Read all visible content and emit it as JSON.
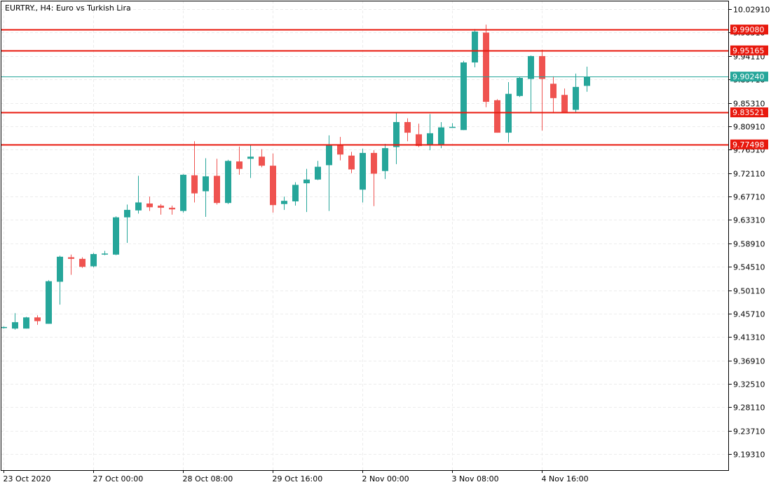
{
  "window": {
    "symbol": "EURTRY.",
    "timeframe": "H4",
    "description": "Euro vs Turkish Lira",
    "title_text": "EURTRY., H4:  Euro vs Turkish Lira"
  },
  "colors": {
    "bull": "#26a69a",
    "bear": "#ef5350",
    "level_line": "#e8190e",
    "bid_line": "#26a69a",
    "grid": "#ececec",
    "axis": "#000000"
  },
  "chart_data": {
    "type": "candlestick",
    "symbol": "EURTRY.",
    "timeframe": "H4",
    "ylim": [
      9.163,
      10.045
    ],
    "grid": true,
    "y_ticks": [
      "10.02910",
      "9.98510",
      "9.94110",
      "9.89710",
      "9.85310",
      "9.80910",
      "9.76510",
      "9.72110",
      "9.67710",
      "9.63310",
      "9.58910",
      "9.54510",
      "9.50110",
      "9.45710",
      "9.41310",
      "9.36910",
      "9.32510",
      "9.28110",
      "9.23710",
      "9.19310"
    ],
    "x_labels": [
      {
        "index": 0,
        "label": "23 Oct 2020"
      },
      {
        "index": 8,
        "label": "27 Oct 00:00"
      },
      {
        "index": 16,
        "label": "28 Oct 08:00"
      },
      {
        "index": 24,
        "label": "29 Oct 16:00"
      },
      {
        "index": 32,
        "label": "2 Nov 00:00"
      },
      {
        "index": 40,
        "label": "3 Nov 08:00"
      },
      {
        "index": 48,
        "label": "4 Nov 16:00"
      }
    ],
    "candles": [
      {
        "open": 9.431,
        "high": 9.433,
        "low": 9.429,
        "close": 9.432
      },
      {
        "open": 9.429,
        "high": 9.458,
        "low": 9.427,
        "close": 9.441
      },
      {
        "open": 9.429,
        "high": 9.451,
        "low": 9.429,
        "close": 9.45
      },
      {
        "open": 9.45,
        "high": 9.454,
        "low": 9.436,
        "close": 9.443
      },
      {
        "open": 9.438,
        "high": 9.52,
        "low": 9.438,
        "close": 9.518
      },
      {
        "open": 9.517,
        "high": 9.566,
        "low": 9.474,
        "close": 9.564
      },
      {
        "open": 9.563,
        "high": 9.568,
        "low": 9.53,
        "close": 9.56
      },
      {
        "open": 9.56,
        "high": 9.563,
        "low": 9.543,
        "close": 9.545
      },
      {
        "open": 9.546,
        "high": 9.571,
        "low": 9.544,
        "close": 9.569
      },
      {
        "open": 9.568,
        "high": 9.575,
        "low": 9.567,
        "close": 9.57
      },
      {
        "open": 9.568,
        "high": 9.64,
        "low": 9.567,
        "close": 9.638
      },
      {
        "open": 9.638,
        "high": 9.662,
        "low": 9.59,
        "close": 9.652
      },
      {
        "open": 9.651,
        "high": 9.716,
        "low": 9.645,
        "close": 9.666
      },
      {
        "open": 9.664,
        "high": 9.677,
        "low": 9.65,
        "close": 9.657
      },
      {
        "open": 9.66,
        "high": 9.663,
        "low": 9.643,
        "close": 9.656
      },
      {
        "open": 9.656,
        "high": 9.66,
        "low": 9.643,
        "close": 9.653
      },
      {
        "open": 9.65,
        "high": 9.719,
        "low": 9.647,
        "close": 9.718
      },
      {
        "open": 9.717,
        "high": 9.781,
        "low": 9.666,
        "close": 9.683
      },
      {
        "open": 9.687,
        "high": 9.749,
        "low": 9.639,
        "close": 9.715
      },
      {
        "open": 9.716,
        "high": 9.748,
        "low": 9.662,
        "close": 9.665
      },
      {
        "open": 9.665,
        "high": 9.746,
        "low": 9.663,
        "close": 9.744
      },
      {
        "open": 9.743,
        "high": 9.771,
        "low": 9.718,
        "close": 9.729
      },
      {
        "open": 9.748,
        "high": 9.775,
        "low": 9.712,
        "close": 9.752
      },
      {
        "open": 9.752,
        "high": 9.766,
        "low": 9.732,
        "close": 9.735
      },
      {
        "open": 9.735,
        "high": 9.758,
        "low": 9.647,
        "close": 9.661
      },
      {
        "open": 9.663,
        "high": 9.677,
        "low": 9.652,
        "close": 9.669
      },
      {
        "open": 9.668,
        "high": 9.704,
        "low": 9.66,
        "close": 9.699
      },
      {
        "open": 9.702,
        "high": 9.729,
        "low": 9.648,
        "close": 9.709
      },
      {
        "open": 9.709,
        "high": 9.744,
        "low": 9.708,
        "close": 9.733
      },
      {
        "open": 9.736,
        "high": 9.792,
        "low": 9.65,
        "close": 9.774
      },
      {
        "open": 9.775,
        "high": 9.789,
        "low": 9.745,
        "close": 9.756
      },
      {
        "open": 9.754,
        "high": 9.761,
        "low": 9.721,
        "close": 9.728
      },
      {
        "open": 9.69,
        "high": 9.767,
        "low": 9.666,
        "close": 9.759
      },
      {
        "open": 9.759,
        "high": 9.764,
        "low": 9.659,
        "close": 9.72
      },
      {
        "open": 9.725,
        "high": 9.776,
        "low": 9.71,
        "close": 9.768
      },
      {
        "open": 9.77,
        "high": 9.836,
        "low": 9.738,
        "close": 9.817
      },
      {
        "open": 9.817,
        "high": 9.824,
        "low": 9.781,
        "close": 9.797
      },
      {
        "open": 9.794,
        "high": 9.814,
        "low": 9.77,
        "close": 9.772
      },
      {
        "open": 9.774,
        "high": 9.832,
        "low": 9.764,
        "close": 9.796
      },
      {
        "open": 9.775,
        "high": 9.817,
        "low": 9.768,
        "close": 9.807
      },
      {
        "open": 9.808,
        "high": 9.815,
        "low": 9.807,
        "close": 9.808
      },
      {
        "open": 9.802,
        "high": 9.932,
        "low": 9.802,
        "close": 9.929
      },
      {
        "open": 9.929,
        "high": 9.992,
        "low": 9.92,
        "close": 9.987
      },
      {
        "open": 9.985,
        "high": 10.0,
        "low": 9.845,
        "close": 9.855
      },
      {
        "open": 9.858,
        "high": 9.86,
        "low": 9.797,
        "close": 9.797
      },
      {
        "open": 9.797,
        "high": 9.892,
        "low": 9.779,
        "close": 9.87
      },
      {
        "open": 9.866,
        "high": 9.902,
        "low": 9.864,
        "close": 9.9
      },
      {
        "open": 9.898,
        "high": 9.942,
        "low": 9.834,
        "close": 9.941
      },
      {
        "open": 9.941,
        "high": 9.953,
        "low": 9.801,
        "close": 9.898
      },
      {
        "open": 9.889,
        "high": 9.903,
        "low": 9.836,
        "close": 9.862
      },
      {
        "open": 9.868,
        "high": 9.88,
        "low": 9.834,
        "close": 9.835
      },
      {
        "open": 9.84,
        "high": 9.908,
        "low": 9.836,
        "close": 9.883
      },
      {
        "open": 9.885,
        "high": 9.921,
        "low": 9.874,
        "close": 9.902
      }
    ],
    "levels": [
      {
        "value": 9.9908,
        "label": "9.99080"
      },
      {
        "value": 9.95165,
        "label": "9.95165"
      },
      {
        "value": 9.83521,
        "label": "9.83521"
      },
      {
        "value": 9.77498,
        "label": "9.77498"
      }
    ],
    "bid": {
      "value": 9.9024,
      "label": "9.90240"
    }
  }
}
